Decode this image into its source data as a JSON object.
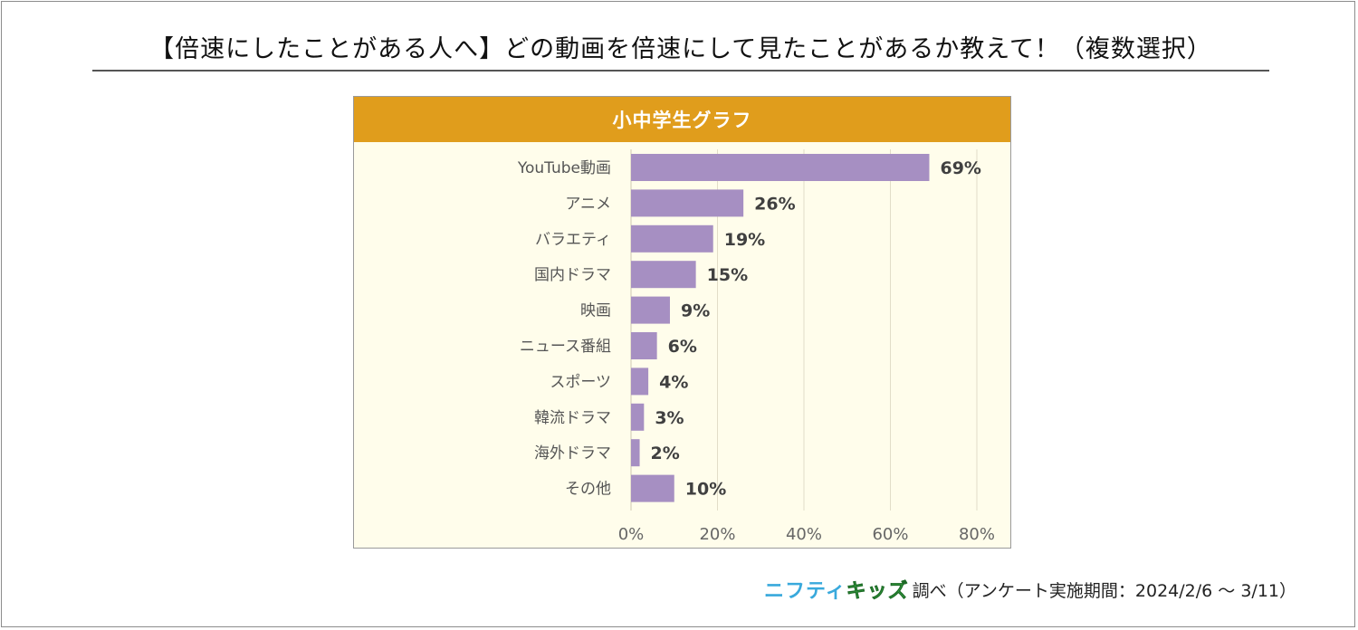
{
  "header": {
    "title": "【倍速にしたことがある人へ】どの動画を倍速にして見たことがあるか教えて！（複数選択）"
  },
  "chart_data": {
    "type": "bar",
    "orientation": "horizontal",
    "title": "小中学生グラフ",
    "categories": [
      "YouTube動画",
      "アニメ",
      "バラエティ",
      "国内ドラマ",
      "映画",
      "ニュース番組",
      "スポーツ",
      "韓流ドラマ",
      "海外ドラマ",
      "その他"
    ],
    "values": [
      69,
      26,
      19,
      15,
      9,
      6,
      4,
      3,
      2,
      10
    ],
    "value_labels": [
      "69%",
      "26%",
      "19%",
      "15%",
      "9%",
      "6%",
      "4%",
      "3%",
      "2%",
      "10%"
    ],
    "xlim": [
      0,
      80
    ],
    "xticks": [
      0,
      20,
      40,
      60,
      80
    ],
    "xtick_labels": [
      "0%",
      "20%",
      "40%",
      "60%",
      "80%"
    ],
    "grid": true,
    "bar_color": "#a68fc2",
    "header_color": "#e09d1c",
    "plot_bg": "#fffdeb"
  },
  "footer": {
    "brand_part1": "ニフティ",
    "brand_part2": "キッズ",
    "note": "調べ（アンケート実施期間：2024/2/6 ～ 3/11）"
  }
}
